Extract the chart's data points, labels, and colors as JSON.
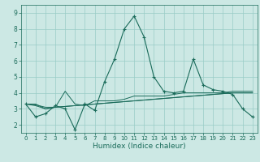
{
  "title": "",
  "xlabel": "Humidex (Indice chaleur)",
  "bg_color": "#cce8e4",
  "grid_color": "#99ccc6",
  "line_color": "#1a6b5a",
  "xlim": [
    -0.5,
    23.5
  ],
  "ylim": [
    1.5,
    9.5
  ],
  "yticks": [
    2,
    3,
    4,
    5,
    6,
    7,
    8,
    9
  ],
  "xticks": [
    0,
    1,
    2,
    3,
    4,
    5,
    6,
    7,
    8,
    9,
    10,
    11,
    12,
    13,
    14,
    15,
    16,
    17,
    18,
    19,
    20,
    21,
    22,
    23
  ],
  "series": [
    [
      3.3,
      2.5,
      2.7,
      3.2,
      3.0,
      1.7,
      3.3,
      2.9,
      4.7,
      6.1,
      8.0,
      8.8,
      7.5,
      5.0,
      4.1,
      4.0,
      4.1,
      6.1,
      4.5,
      4.2,
      4.1,
      3.9,
      3.0,
      2.5
    ],
    [
      3.3,
      3.3,
      3.0,
      3.1,
      4.1,
      3.3,
      3.2,
      3.5,
      3.5,
      3.5,
      3.6,
      3.8,
      3.8,
      3.8,
      3.8,
      3.9,
      4.0,
      4.0,
      4.0,
      4.0,
      4.0,
      4.1,
      4.1,
      4.1
    ],
    [
      3.3,
      3.2,
      3.0,
      3.1,
      3.15,
      3.2,
      3.25,
      3.3,
      3.35,
      3.4,
      3.45,
      3.5,
      3.55,
      3.6,
      3.65,
      3.7,
      3.75,
      3.8,
      3.85,
      3.9,
      3.95,
      4.0,
      4.0,
      4.0
    ],
    [
      3.3,
      3.25,
      3.1,
      3.1,
      3.15,
      3.2,
      3.25,
      3.3,
      3.35,
      3.4,
      3.45,
      3.5,
      3.55,
      3.6,
      3.65,
      3.7,
      3.75,
      3.8,
      3.85,
      3.9,
      3.95,
      4.0,
      4.0,
      4.0
    ]
  ],
  "marker_series": 0
}
